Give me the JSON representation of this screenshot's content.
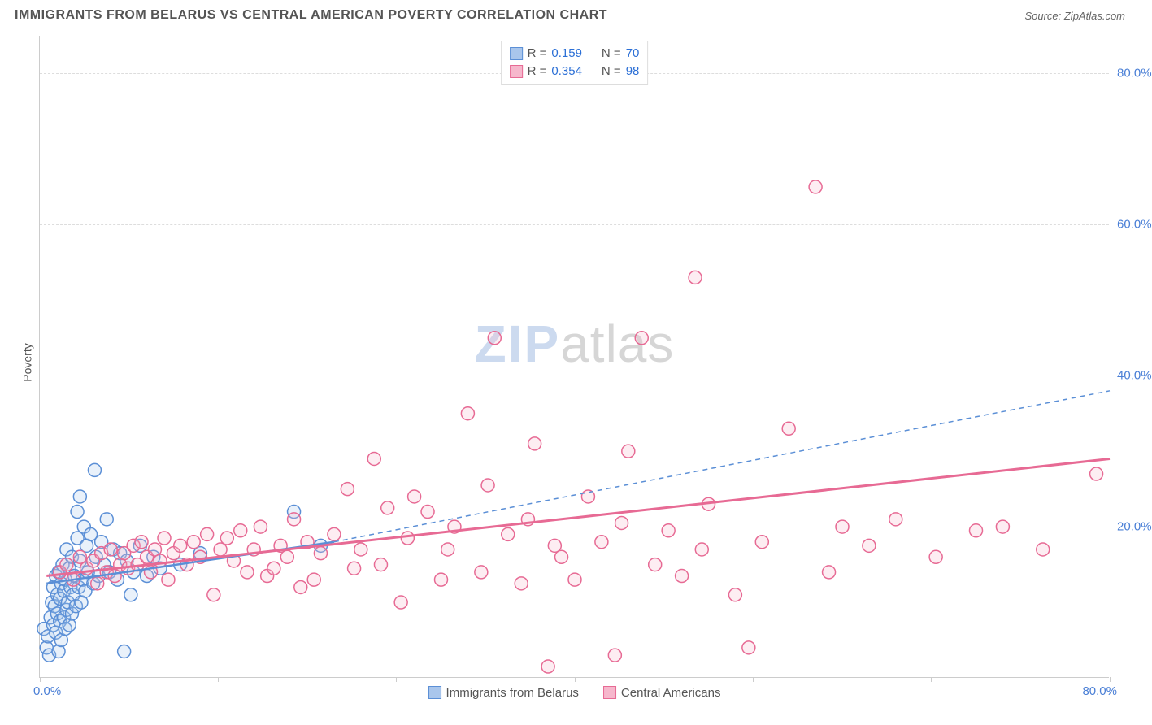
{
  "title": "IMMIGRANTS FROM BELARUS VS CENTRAL AMERICAN POVERTY CORRELATION CHART",
  "source_label": "Source: ZipAtlas.com",
  "y_axis_label": "Poverty",
  "watermark": {
    "part1": "ZIP",
    "part2": "atlas"
  },
  "chart": {
    "type": "scatter",
    "background_color": "#ffffff",
    "grid_color": "#dddddd",
    "axis_color": "#cccccc",
    "tick_label_color": "#4a7fd6",
    "tick_fontsize": 15,
    "title_fontsize": 16,
    "title_color": "#555555",
    "xlim": [
      0,
      80
    ],
    "ylim": [
      0,
      85
    ],
    "y_ticks": [
      20,
      40,
      60,
      80
    ],
    "y_tick_labels": [
      "20.0%",
      "40.0%",
      "60.0%",
      "80.0%"
    ],
    "x_tick_positions": [
      0,
      13.3,
      26.6,
      40,
      53.3,
      66.6,
      80
    ],
    "x_origin_label": "0.0%",
    "x_max_label": "80.0%",
    "marker_radius": 8,
    "marker_stroke_width": 1.5,
    "marker_fill_opacity": 0.25,
    "series": [
      {
        "name": "Immigrants from Belarus",
        "color": "#5b8fd6",
        "fill": "#a9c6ec",
        "R": "0.159",
        "N": "70",
        "trend": {
          "x1": 0.5,
          "y1": 12.5,
          "x2": 22,
          "y2": 18,
          "solid_width": 2.5,
          "dash": "6,5",
          "dash_x2": 80,
          "dash_y2": 38
        },
        "points": [
          [
            0.3,
            6.5
          ],
          [
            0.5,
            4.0
          ],
          [
            0.6,
            5.5
          ],
          [
            0.7,
            3.0
          ],
          [
            0.8,
            8.0
          ],
          [
            0.9,
            10.0
          ],
          [
            1.0,
            7.0
          ],
          [
            1.0,
            12.0
          ],
          [
            1.1,
            9.5
          ],
          [
            1.2,
            6.0
          ],
          [
            1.2,
            13.5
          ],
          [
            1.3,
            8.5
          ],
          [
            1.3,
            11.0
          ],
          [
            1.4,
            3.5
          ],
          [
            1.4,
            14.0
          ],
          [
            1.5,
            7.5
          ],
          [
            1.5,
            10.5
          ],
          [
            1.6,
            12.5
          ],
          [
            1.6,
            5.0
          ],
          [
            1.7,
            15.0
          ],
          [
            1.8,
            8.0
          ],
          [
            1.8,
            11.5
          ],
          [
            1.9,
            6.5
          ],
          [
            1.9,
            13.0
          ],
          [
            2.0,
            9.0
          ],
          [
            2.0,
            17.0
          ],
          [
            2.1,
            10.0
          ],
          [
            2.2,
            7.0
          ],
          [
            2.2,
            14.5
          ],
          [
            2.3,
            12.0
          ],
          [
            2.4,
            8.5
          ],
          [
            2.4,
            16.0
          ],
          [
            2.5,
            11.0
          ],
          [
            2.6,
            13.5
          ],
          [
            2.7,
            9.5
          ],
          [
            2.8,
            18.5
          ],
          [
            2.8,
            22.0
          ],
          [
            2.9,
            12.0
          ],
          [
            3.0,
            15.5
          ],
          [
            3.0,
            24.0
          ],
          [
            3.1,
            10.0
          ],
          [
            3.2,
            13.0
          ],
          [
            3.3,
            20.0
          ],
          [
            3.4,
            11.5
          ],
          [
            3.5,
            17.5
          ],
          [
            3.6,
            14.0
          ],
          [
            3.8,
            19.0
          ],
          [
            4.0,
            12.5
          ],
          [
            4.1,
            27.5
          ],
          [
            4.2,
            16.0
          ],
          [
            4.4,
            13.5
          ],
          [
            4.6,
            18.0
          ],
          [
            4.8,
            15.0
          ],
          [
            5.0,
            21.0
          ],
          [
            5.2,
            14.0
          ],
          [
            5.5,
            17.0
          ],
          [
            5.8,
            13.0
          ],
          [
            6.0,
            16.5
          ],
          [
            6.3,
            3.5
          ],
          [
            6.5,
            15.5
          ],
          [
            6.8,
            11.0
          ],
          [
            7.0,
            14.0
          ],
          [
            7.5,
            17.5
          ],
          [
            8.0,
            13.5
          ],
          [
            8.5,
            16.0
          ],
          [
            9.0,
            14.5
          ],
          [
            10.5,
            15.0
          ],
          [
            12.0,
            16.5
          ],
          [
            19.0,
            22.0
          ],
          [
            21.0,
            17.5
          ]
        ]
      },
      {
        "name": "Central Americans",
        "color": "#e76a94",
        "fill": "#f6b7cc",
        "R": "0.354",
        "N": "98",
        "trend": {
          "x1": 0.5,
          "y1": 13.5,
          "x2": 80,
          "y2": 29,
          "solid_width": 3,
          "dash": null
        },
        "points": [
          [
            1.5,
            14.0
          ],
          [
            2.0,
            15.0
          ],
          [
            2.5,
            13.0
          ],
          [
            3.0,
            16.0
          ],
          [
            3.5,
            14.5
          ],
          [
            4.0,
            15.5
          ],
          [
            4.3,
            12.5
          ],
          [
            4.6,
            16.5
          ],
          [
            5.0,
            14.0
          ],
          [
            5.3,
            17.0
          ],
          [
            5.6,
            13.5
          ],
          [
            6.0,
            15.0
          ],
          [
            6.3,
            16.5
          ],
          [
            6.6,
            14.5
          ],
          [
            7.0,
            17.5
          ],
          [
            7.3,
            15.0
          ],
          [
            7.6,
            18.0
          ],
          [
            8.0,
            16.0
          ],
          [
            8.3,
            14.0
          ],
          [
            8.6,
            17.0
          ],
          [
            9.0,
            15.5
          ],
          [
            9.3,
            18.5
          ],
          [
            9.6,
            13.0
          ],
          [
            10.0,
            16.5
          ],
          [
            10.5,
            17.5
          ],
          [
            11.0,
            15.0
          ],
          [
            11.5,
            18.0
          ],
          [
            12.0,
            16.0
          ],
          [
            12.5,
            19.0
          ],
          [
            13.0,
            11.0
          ],
          [
            13.5,
            17.0
          ],
          [
            14.0,
            18.5
          ],
          [
            14.5,
            15.5
          ],
          [
            15.0,
            19.5
          ],
          [
            15.5,
            14.0
          ],
          [
            16.0,
            17.0
          ],
          [
            16.5,
            20.0
          ],
          [
            17.0,
            13.5
          ],
          [
            17.5,
            14.5
          ],
          [
            18.0,
            17.5
          ],
          [
            18.5,
            16.0
          ],
          [
            19.0,
            21.0
          ],
          [
            19.5,
            12.0
          ],
          [
            20.0,
            18.0
          ],
          [
            20.5,
            13.0
          ],
          [
            21.0,
            16.5
          ],
          [
            22.0,
            19.0
          ],
          [
            23.0,
            25.0
          ],
          [
            23.5,
            14.5
          ],
          [
            24.0,
            17.0
          ],
          [
            25.0,
            29.0
          ],
          [
            25.5,
            15.0
          ],
          [
            26.0,
            22.5
          ],
          [
            27.0,
            10.0
          ],
          [
            27.5,
            18.5
          ],
          [
            28.0,
            24.0
          ],
          [
            29.0,
            22.0
          ],
          [
            30.0,
            13.0
          ],
          [
            30.5,
            17.0
          ],
          [
            31.0,
            20.0
          ],
          [
            32.0,
            35.0
          ],
          [
            33.0,
            14.0
          ],
          [
            33.5,
            25.5
          ],
          [
            34.0,
            45.0
          ],
          [
            35.0,
            19.0
          ],
          [
            36.0,
            12.5
          ],
          [
            36.5,
            21.0
          ],
          [
            37.0,
            31.0
          ],
          [
            38.0,
            1.5
          ],
          [
            38.5,
            17.5
          ],
          [
            39.0,
            16.0
          ],
          [
            40.0,
            13.0
          ],
          [
            41.0,
            24.0
          ],
          [
            42.0,
            18.0
          ],
          [
            43.0,
            3.0
          ],
          [
            43.5,
            20.5
          ],
          [
            44.0,
            30.0
          ],
          [
            45.0,
            45.0
          ],
          [
            46.0,
            15.0
          ],
          [
            47.0,
            19.5
          ],
          [
            48.0,
            13.5
          ],
          [
            49.0,
            53.0
          ],
          [
            49.5,
            17.0
          ],
          [
            50.0,
            23.0
          ],
          [
            52.0,
            11.0
          ],
          [
            53.0,
            4.0
          ],
          [
            54.0,
            18.0
          ],
          [
            56.0,
            33.0
          ],
          [
            58.0,
            65.0
          ],
          [
            59.0,
            14.0
          ],
          [
            60.0,
            20.0
          ],
          [
            62.0,
            17.5
          ],
          [
            64.0,
            21.0
          ],
          [
            67.0,
            16.0
          ],
          [
            70.0,
            19.5
          ],
          [
            72.0,
            20.0
          ],
          [
            75.0,
            17.0
          ],
          [
            79.0,
            27.0
          ]
        ]
      }
    ],
    "legend_top": {
      "R_label": "R =",
      "N_label": "N ="
    },
    "legend_bottom": [
      {
        "label": "Immigrants from Belarus",
        "color": "#5b8fd6",
        "fill": "#a9c6ec"
      },
      {
        "label": "Central Americans",
        "color": "#e76a94",
        "fill": "#f6b7cc"
      }
    ]
  }
}
